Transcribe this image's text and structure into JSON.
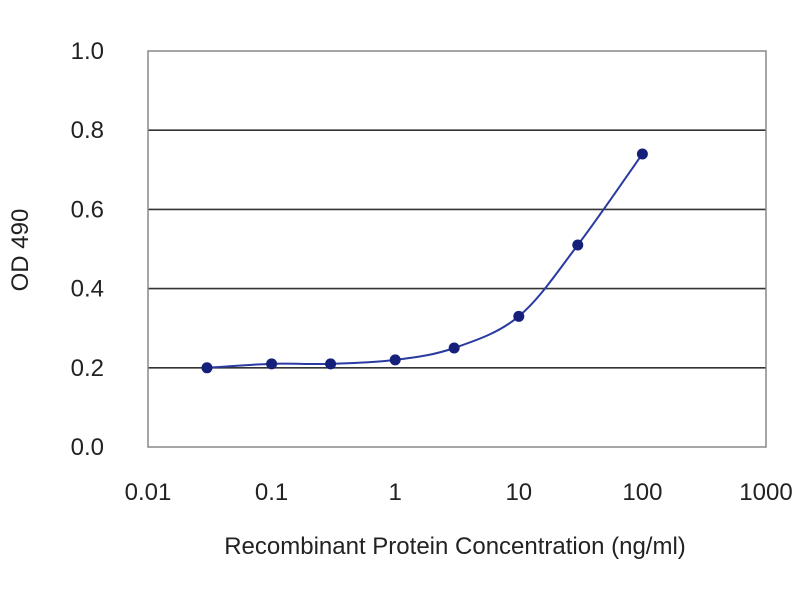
{
  "chart_data": {
    "type": "line",
    "title": "",
    "xlabel": "Recombinant Protein Concentration (ng/ml)",
    "ylabel": "OD 490",
    "x_scale": "log",
    "xlim": [
      0.01,
      1000
    ],
    "ylim": [
      0.0,
      1.0
    ],
    "grid": "horizontal",
    "x_ticks": [
      0.01,
      0.1,
      1,
      10,
      100,
      1000
    ],
    "x_tick_labels": [
      "0.01",
      "0.1",
      "1",
      "10",
      "100",
      "1000"
    ],
    "y_ticks": [
      0.0,
      0.2,
      0.4,
      0.6,
      0.8,
      1.0
    ],
    "y_tick_labels": [
      "0.0",
      "0.2",
      "0.4",
      "0.6",
      "0.8",
      "1.0"
    ],
    "series": [
      {
        "color": "#1f2a8a",
        "x": [
          0.03,
          0.1,
          0.3,
          1,
          3,
          10,
          30,
          100
        ],
        "y": [
          0.2,
          0.21,
          0.21,
          0.22,
          0.25,
          0.33,
          0.51,
          0.74
        ]
      }
    ],
    "colors": {
      "plot_border": "#888888",
      "gridline": "#333333",
      "line": "#2a3aa0",
      "marker": "#15207a"
    }
  }
}
